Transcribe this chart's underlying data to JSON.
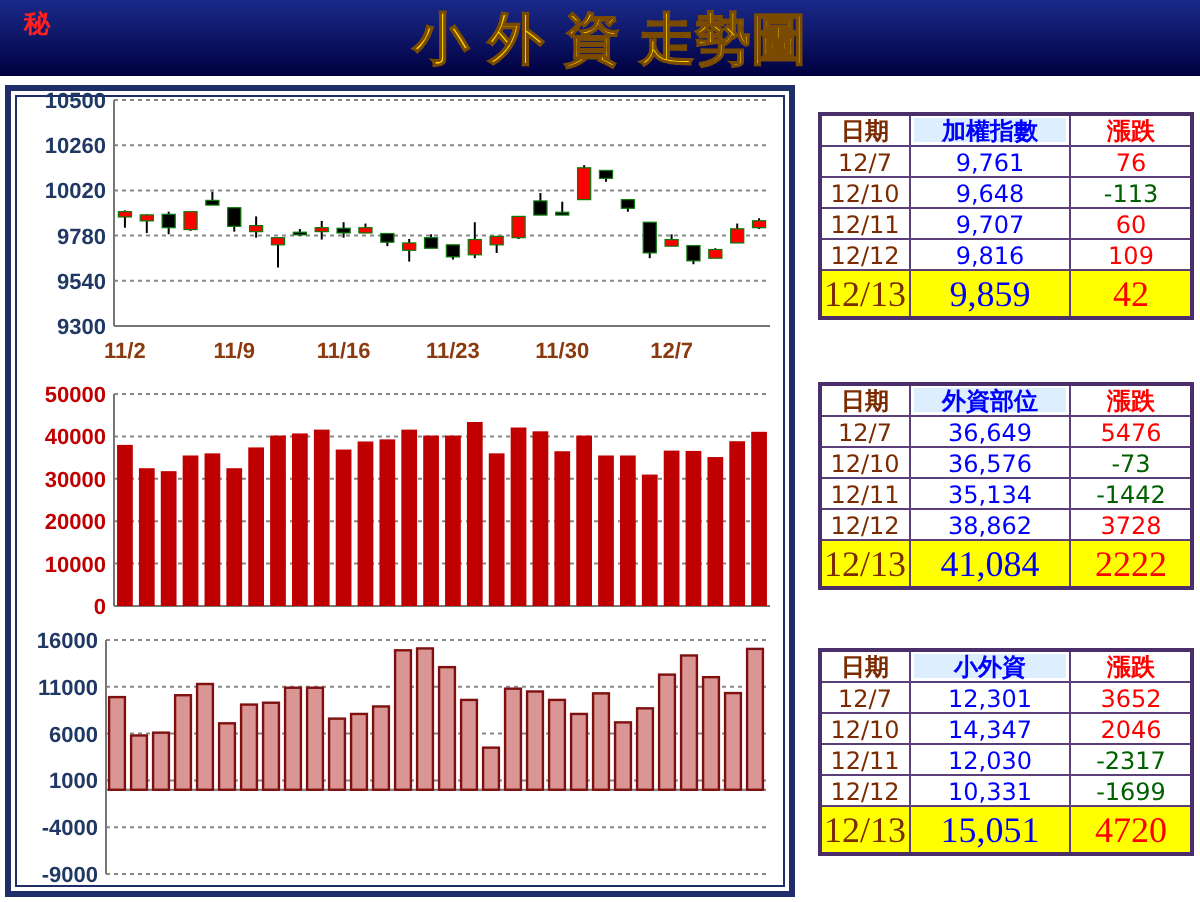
{
  "chart_data": [
    {
      "type": "candlestick",
      "title": "小 外 資 走勢圖",
      "annotations": [
        "秘"
      ],
      "categories": [
        "11/2",
        null,
        null,
        null,
        null,
        "11/9",
        null,
        null,
        null,
        null,
        "11/16",
        null,
        null,
        null,
        null,
        "11/23",
        null,
        null,
        null,
        null,
        "11/30",
        null,
        null,
        null,
        null,
        "12/7",
        null,
        null,
        null,
        null
      ],
      "ohlc": [
        [
          9879,
          9914,
          9822,
          9907
        ],
        [
          9858,
          9893,
          9794,
          9890
        ],
        [
          9893,
          9907,
          9787,
          9822
        ],
        [
          9812,
          9907,
          9805,
          9907
        ],
        [
          9967,
          10013,
          9942,
          9942
        ],
        [
          9928,
          9928,
          9801,
          9829
        ],
        [
          9801,
          9882,
          9769,
          9833
        ],
        [
          9731,
          9769,
          9611,
          9769
        ],
        [
          9798,
          9815,
          9780,
          9784
        ],
        [
          9801,
          9858,
          9759,
          9822
        ],
        [
          9819,
          9851,
          9769,
          9794
        ],
        [
          9794,
          9844,
          9794,
          9822
        ],
        [
          9791,
          9791,
          9724,
          9745
        ],
        [
          9702,
          9762,
          9642,
          9741
        ],
        [
          9769,
          9787,
          9713,
          9713
        ],
        [
          9731,
          9731,
          9653,
          9667
        ],
        [
          9678,
          9851,
          9660,
          9759
        ],
        [
          9731,
          9776,
          9688,
          9776
        ],
        [
          9769,
          9882,
          9762,
          9882
        ],
        [
          9964,
          10006,
          9889,
          9889
        ],
        [
          9904,
          9960,
          9889,
          9889
        ],
        [
          9971,
          10154,
          9971,
          10140
        ],
        [
          10126,
          10126,
          10066,
          10084
        ],
        [
          9971,
          9971,
          9907,
          9925
        ],
        [
          9851,
          9851,
          9660,
          9688
        ],
        [
          9724,
          9787,
          9724,
          9759
        ],
        [
          9727,
          9727,
          9628,
          9646
        ],
        [
          9660,
          9713,
          9660,
          9706
        ],
        [
          9741,
          9844,
          9741,
          9816
        ],
        [
          9822,
          9872,
          9815,
          9859
        ]
      ],
      "colors": [
        "#ff0000",
        "#ff0000",
        "#000000",
        "#ff0000",
        "#000000",
        "#000000",
        "#ff0000",
        "#ff0000",
        "#000000",
        "#ff0000",
        "#000000",
        "#ff0000",
        "#000000",
        "#ff0000",
        "#000000",
        "#000000",
        "#ff0000",
        "#ff0000",
        "#ff0000",
        "#000000",
        "#000000",
        "#ff0000",
        "#000000",
        "#000000",
        "#000000",
        "#ff0000",
        "#000000",
        "#ff0000",
        "#ff0000",
        "#ff0000"
      ],
      "ylim": [
        9300,
        10500
      ],
      "yticks": [
        9300,
        9540,
        9780,
        10020,
        10260,
        10500
      ],
      "grid": "y"
    },
    {
      "type": "bar",
      "color": "#c00000",
      "categories": [
        null,
        null,
        null,
        null,
        null,
        null,
        null,
        null,
        null,
        null,
        null,
        null,
        null,
        null,
        null,
        null,
        null,
        null,
        null,
        null,
        null,
        null,
        null,
        null,
        null,
        null,
        null,
        null,
        null,
        null
      ],
      "values": [
        38000,
        32500,
        31800,
        35500,
        36000,
        32500,
        37400,
        40200,
        40700,
        41600,
        36900,
        38800,
        39300,
        41600,
        40200,
        40200,
        43400,
        36000,
        42100,
        41200,
        36500,
        40200,
        35500,
        35500,
        31000,
        36649,
        36576,
        35134,
        38862,
        41084
      ],
      "ylim": [
        0,
        50000
      ],
      "yticks": [
        0,
        10000,
        20000,
        30000,
        40000,
        50000
      ],
      "grid": "y"
    },
    {
      "type": "bar",
      "color": "#d99694",
      "categories": [
        null,
        null,
        null,
        null,
        null,
        null,
        null,
        null,
        null,
        null,
        null,
        null,
        null,
        null,
        null,
        null,
        null,
        null,
        null,
        null,
        null,
        null,
        null,
        null,
        null,
        null,
        null,
        null,
        null,
        null
      ],
      "values": [
        9900,
        5800,
        6100,
        10100,
        11300,
        7100,
        9100,
        9300,
        10900,
        10900,
        7600,
        8100,
        8900,
        14900,
        15100,
        13100,
        9600,
        4500,
        10800,
        10500,
        9600,
        8100,
        10300,
        7200,
        8700,
        12301,
        14347,
        12030,
        10331,
        15051
      ],
      "ylim": [
        -9000,
        16000
      ],
      "yticks": [
        -9000,
        -4000,
        1000,
        6000,
        11000,
        16000
      ],
      "grid": "y"
    },
    {
      "type": "other",
      "annotations": [
        "日期",
        "加權指數",
        "漲跌",
        "12/7",
        "9,761",
        "76",
        "12/10",
        "9,648",
        "-113",
        "12/11",
        "9,707",
        "60",
        "12/12",
        "9,816",
        "109",
        "12/13",
        "9,859",
        "42"
      ]
    },
    {
      "type": "other",
      "annotations": [
        "日期",
        "外資部位",
        "漲跌",
        "12/7",
        "36,649",
        "5476",
        "12/10",
        "36,576",
        "-73",
        "12/11",
        "35,134",
        "-1442",
        "12/12",
        "38,862",
        "3728",
        "12/13",
        "41,084",
        "2222"
      ]
    },
    {
      "type": "other",
      "annotations": [
        "日期",
        "小外資",
        "漲跌",
        "12/7",
        "12,301",
        "3652",
        "12/10",
        "14,347",
        "2046",
        "12/11",
        "12,030",
        "-2317",
        "12/12",
        "10,331",
        "-1699",
        "12/13",
        "15,051",
        "4720"
      ]
    }
  ]
}
